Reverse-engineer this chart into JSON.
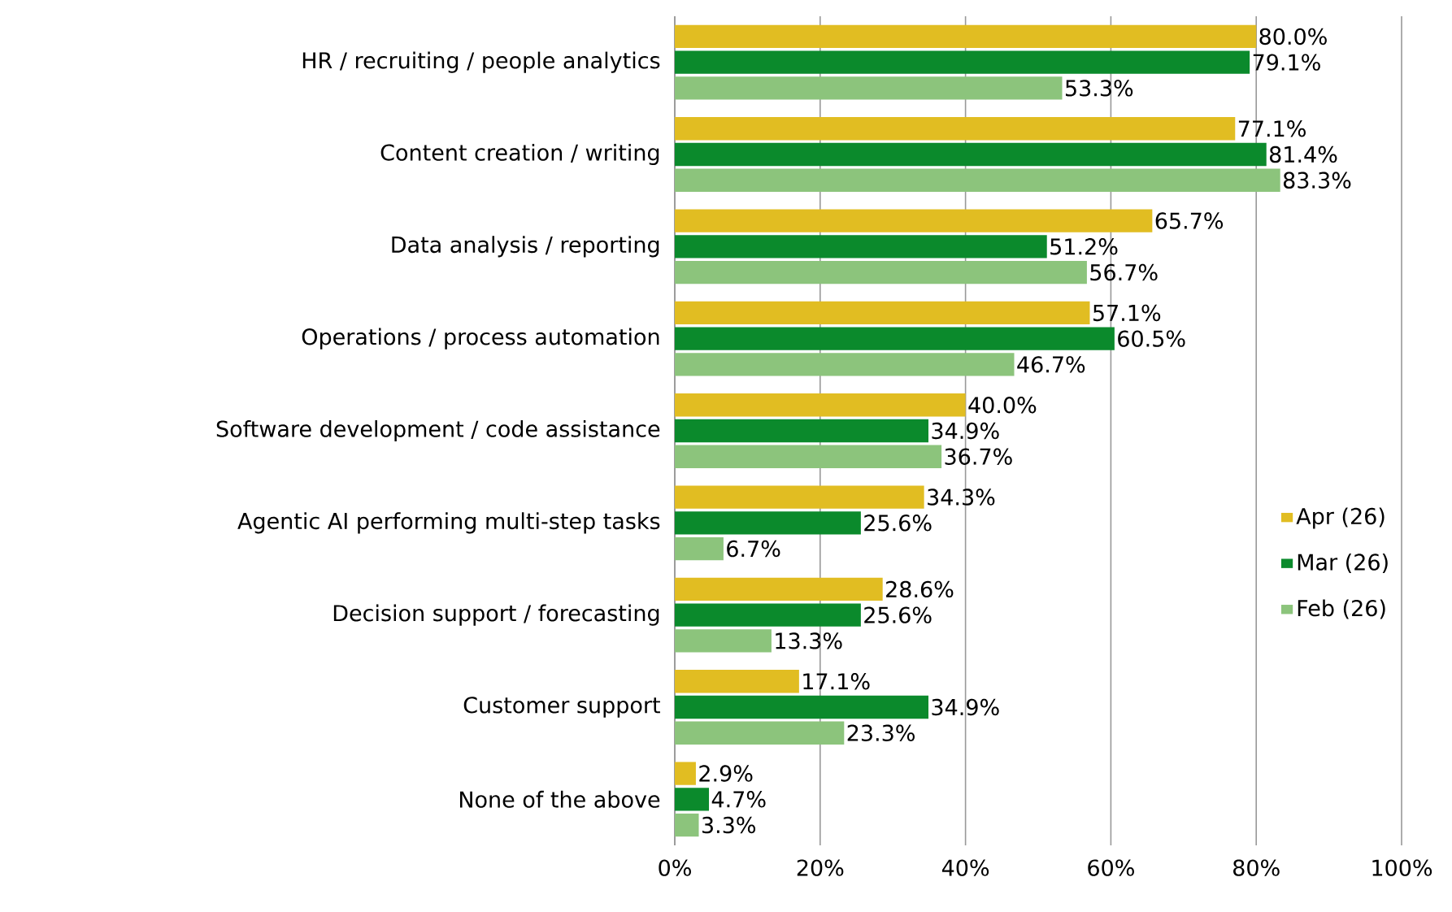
{
  "chart_data": {
    "type": "bar",
    "orientation": "horizontal",
    "categories": [
      "HR / recruiting / people analytics",
      "Content creation / writing",
      "Data analysis / reporting",
      "Operations / process automation",
      "Software development / code assistance",
      "Agentic AI performing multi-step tasks",
      "Decision support / forecasting",
      "Customer support",
      "None of the above"
    ],
    "series": [
      {
        "name": "Apr (26)",
        "color": "#e1bd22",
        "values": [
          80.0,
          77.1,
          65.7,
          57.1,
          40.0,
          34.3,
          28.6,
          17.1,
          2.9
        ],
        "value_labels": [
          "80.0%",
          "77.1%",
          "65.7%",
          "57.1%",
          "40.0%",
          "34.3%",
          "28.6%",
          "17.1%",
          "2.9%"
        ]
      },
      {
        "name": "Mar (26)",
        "color": "#0b8a2c",
        "values": [
          79.1,
          81.4,
          51.2,
          60.5,
          34.9,
          25.6,
          25.6,
          34.9,
          4.7
        ],
        "value_labels": [
          "79.1%",
          "81.4%",
          "51.2%",
          "60.5%",
          "34.9%",
          "25.6%",
          "25.6%",
          "34.9%",
          "4.7%"
        ]
      },
      {
        "name": "Feb (26)",
        "color": "#8cc47c",
        "values": [
          53.3,
          83.3,
          56.7,
          46.7,
          36.7,
          6.7,
          13.3,
          23.3,
          3.3
        ],
        "value_labels": [
          "53.3%",
          "83.3%",
          "56.7%",
          "46.7%",
          "36.7%",
          "6.7%",
          "13.3%",
          "23.3%",
          "3.3%"
        ]
      }
    ],
    "xlim": [
      0,
      100
    ],
    "xticks": [
      {
        "value": 0,
        "label": "0%"
      },
      {
        "value": 20,
        "label": "20%"
      },
      {
        "value": 40,
        "label": "40%"
      },
      {
        "value": 60,
        "label": "60%"
      },
      {
        "value": 80,
        "label": "80%"
      },
      {
        "value": 100,
        "label": "100%"
      }
    ],
    "grid": "x",
    "legend": "right"
  }
}
